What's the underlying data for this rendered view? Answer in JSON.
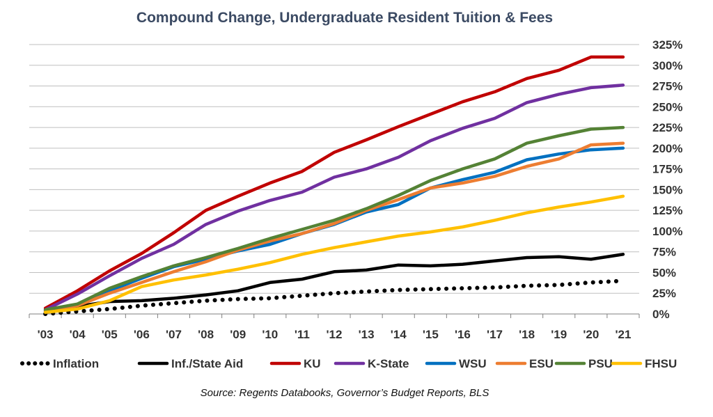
{
  "chart_data": {
    "type": "line",
    "title": "Compound Change, Undergraduate Resident Tuition & Fees",
    "source": "Source: Regents Databooks, Governor’s Budget Reports, BLS",
    "categories": [
      "'03",
      "'04",
      "'05",
      "'06",
      "'07",
      "'08",
      "'09",
      "'10",
      "'11",
      "'12",
      "'13",
      "'14",
      "'15",
      "'16",
      "'17",
      "'18",
      "'19",
      "'20",
      "'21"
    ],
    "y_ticks": [
      "0%",
      "25%",
      "50%",
      "75%",
      "100%",
      "125%",
      "150%",
      "175%",
      "200%",
      "225%",
      "250%",
      "275%",
      "300%",
      "325%"
    ],
    "ylim": [
      0,
      325
    ],
    "y_axis_position": "right",
    "grid": true,
    "legend_position": "bottom",
    "series": [
      {
        "name": "Inflation",
        "color": "#000000",
        "style": "dotted",
        "values": [
          0,
          3,
          6,
          10,
          13,
          16,
          18,
          19,
          22,
          25,
          27,
          29,
          30,
          31,
          32,
          34,
          35,
          38,
          40
        ]
      },
      {
        "name": "Inf./State Aid",
        "color": "#000000",
        "style": "solid",
        "values": [
          3,
          9,
          15,
          16,
          19,
          23,
          28,
          38,
          42,
          51,
          53,
          59,
          58,
          60,
          64,
          68,
          69,
          66,
          72
        ]
      },
      {
        "name": "KU",
        "color": "#c00000",
        "style": "solid",
        "values": [
          7,
          28,
          52,
          73,
          98,
          125,
          142,
          158,
          172,
          195,
          210,
          226,
          241,
          256,
          268,
          284,
          294,
          310,
          310
        ]
      },
      {
        "name": "K-State",
        "color": "#7030a0",
        "style": "solid",
        "values": [
          5,
          24,
          46,
          67,
          84,
          108,
          124,
          137,
          147,
          165,
          175,
          189,
          209,
          224,
          236,
          255,
          265,
          273,
          276
        ]
      },
      {
        "name": "WSU",
        "color": "#0070c0",
        "style": "solid",
        "values": [
          4,
          10,
          28,
          43,
          57,
          66,
          76,
          84,
          97,
          108,
          123,
          132,
          152,
          162,
          171,
          186,
          193,
          198,
          200
        ]
      },
      {
        "name": "ESU",
        "color": "#ed7d31",
        "style": "solid",
        "values": [
          4,
          10,
          25,
          38,
          51,
          63,
          77,
          88,
          97,
          109,
          125,
          138,
          152,
          158,
          166,
          178,
          187,
          204,
          206
        ]
      },
      {
        "name": "PSU",
        "color": "#548235",
        "style": "solid",
        "values": [
          5,
          12,
          31,
          45,
          58,
          68,
          79,
          91,
          102,
          113,
          127,
          143,
          161,
          175,
          187,
          206,
          215,
          223,
          225
        ]
      },
      {
        "name": "FHSU",
        "color": "#ffc000",
        "style": "solid",
        "values": [
          2,
          6,
          16,
          33,
          41,
          47,
          54,
          62,
          72,
          80,
          87,
          94,
          99,
          105,
          113,
          122,
          129,
          135,
          142
        ]
      }
    ]
  }
}
